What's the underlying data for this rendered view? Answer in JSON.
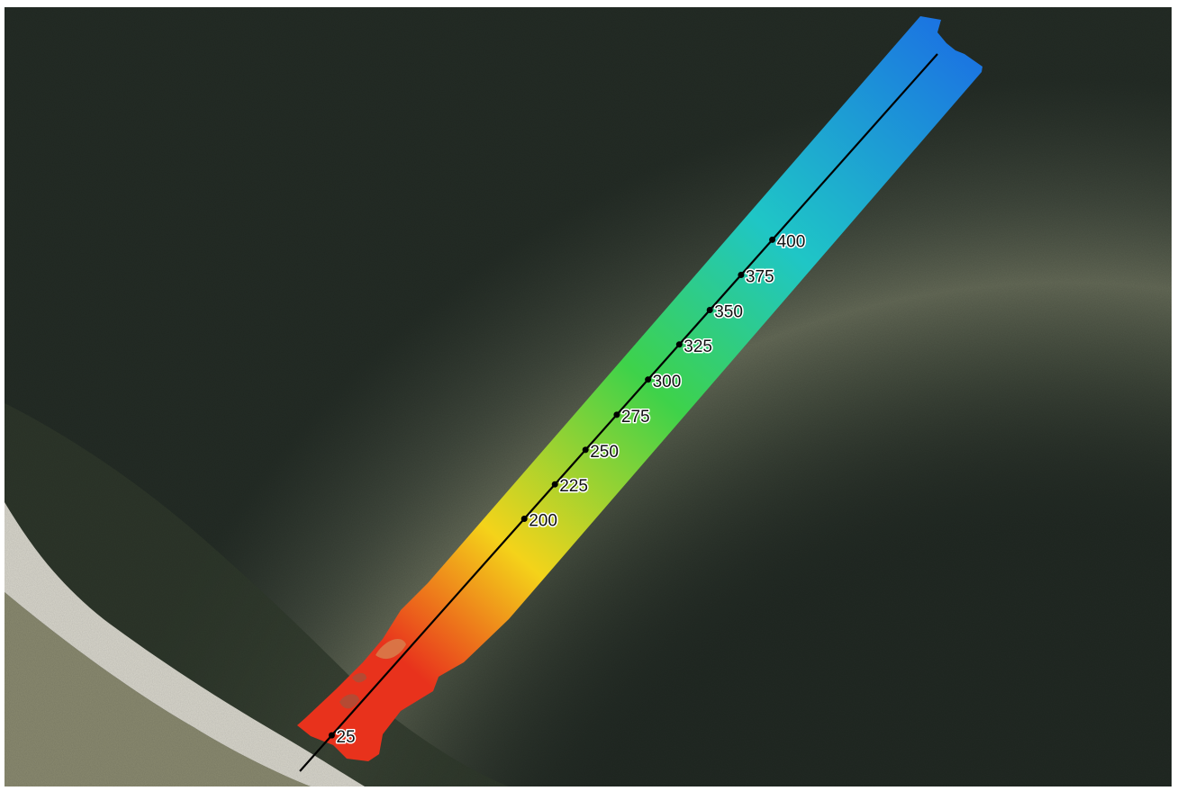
{
  "map": {
    "type": "aerial imagery with bathymetry swath and survey transect",
    "colors": {
      "water": "#212923",
      "shallow_water": "#6e7460",
      "beach": "#d8d6cc",
      "land": "#8a8a70",
      "transect_line": "#000000",
      "ramp_shallow": "#e8321c",
      "ramp_mid": "#f4d31a",
      "ramp_mid2": "#3ed24a",
      "ramp_deep2": "#1fc6c6",
      "ramp_deep": "#1b73e2"
    },
    "transect": {
      "stations": [
        {
          "label": "25",
          "t": 0.05
        },
        {
          "label": "200",
          "t": 0.352
        },
        {
          "label": "225",
          "t": 0.4
        },
        {
          "label": "250",
          "t": 0.448
        },
        {
          "label": "275",
          "t": 0.497
        },
        {
          "label": "300",
          "t": 0.546
        },
        {
          "label": "325",
          "t": 0.595
        },
        {
          "label": "350",
          "t": 0.643
        },
        {
          "label": "375",
          "t": 0.692
        },
        {
          "label": "400",
          "t": 0.741
        }
      ]
    }
  }
}
